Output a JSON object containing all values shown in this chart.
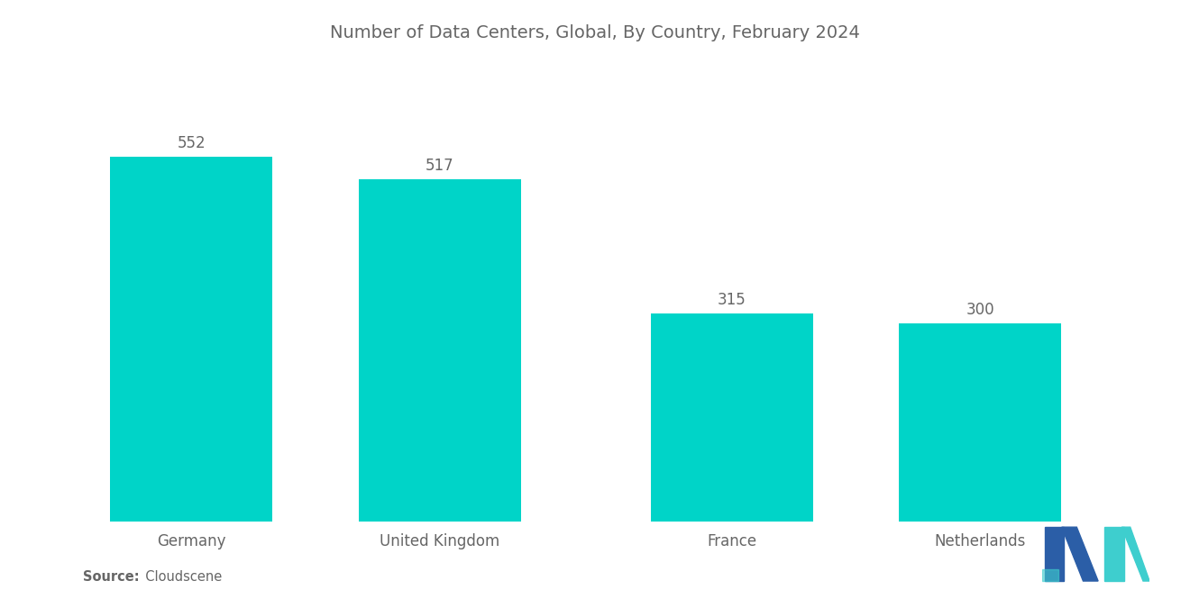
{
  "title": "Number of Data Centers, Global, By Country, February 2024",
  "categories": [
    "Germany",
    "United Kingdom",
    "France",
    "Netherlands"
  ],
  "values": [
    552,
    517,
    315,
    300
  ],
  "bar_color": "#00D4C8",
  "background_color": "#ffffff",
  "title_color": "#666666",
  "label_color": "#666666",
  "value_color": "#666666",
  "title_fontsize": 14,
  "label_fontsize": 12,
  "value_fontsize": 12,
  "source_bold": "Source:",
  "source_normal": "  Cloudscene",
  "ylim": [
    0,
    680
  ],
  "bar_positions": [
    0.5,
    1.65,
    3.0,
    4.15
  ],
  "bar_width": 0.75,
  "logo_dark_blue": "#2B5EA7",
  "logo_teal": "#3ECECE"
}
